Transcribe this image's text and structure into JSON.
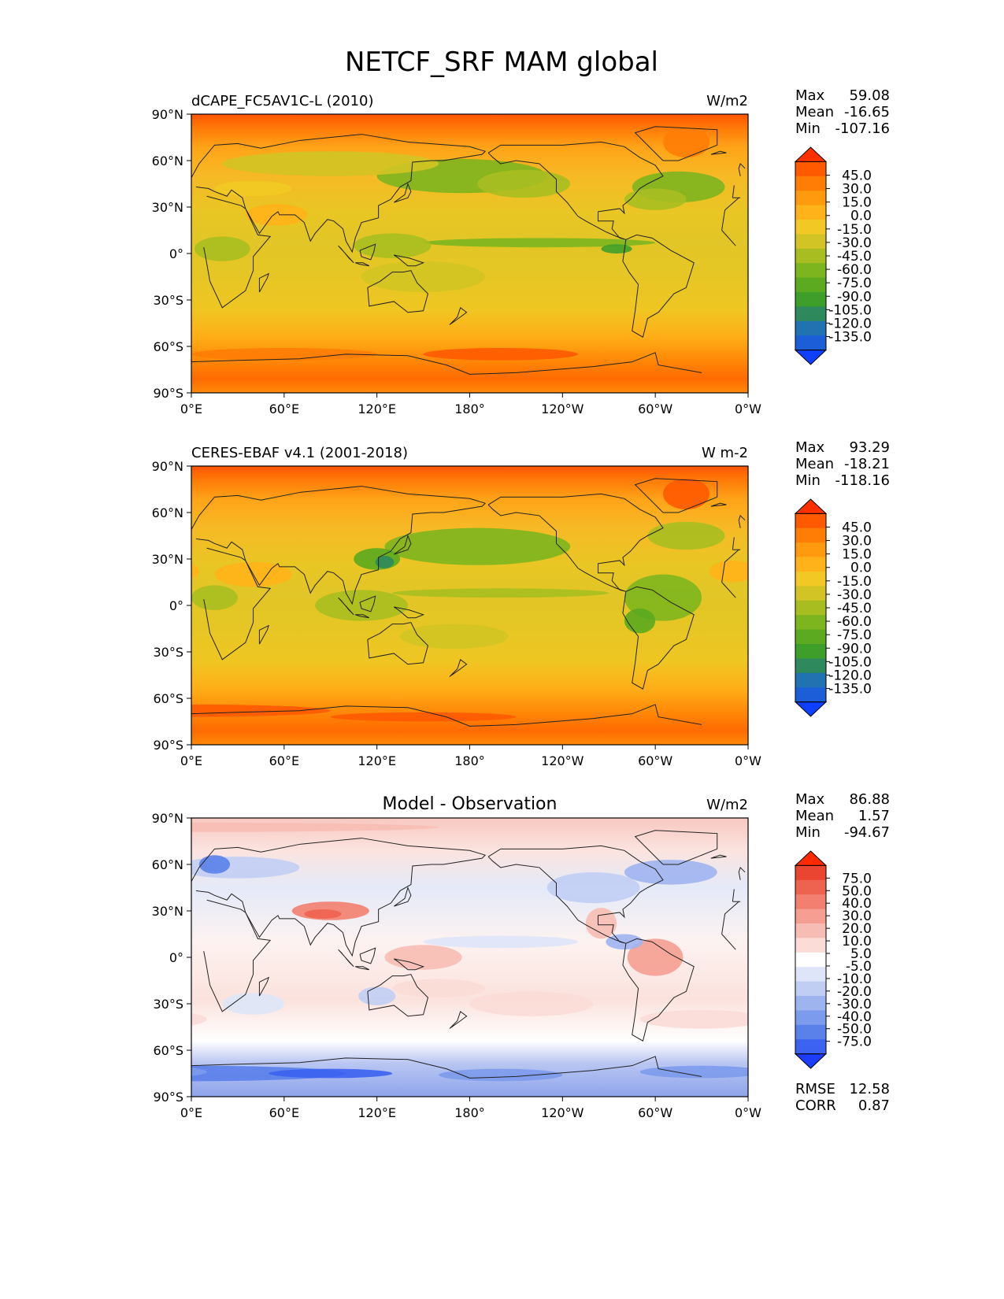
{
  "title": "NETCF_SRF MAM global",
  "x_ticks": [
    "0°E",
    "60°E",
    "120°E",
    "180°",
    "120°W",
    "60°W",
    "0°W"
  ],
  "y_ticks": [
    "90°N",
    "60°N",
    "30°N",
    "0°",
    "30°S",
    "60°S",
    "90°S"
  ],
  "colors": {
    "absolute": [
      "#0F40FF",
      "#1C5ED8",
      "#2072B0",
      "#2E8A5C",
      "#3E9E2A",
      "#5BAA1F",
      "#7DB51E",
      "#A8BE20",
      "#D1C424",
      "#F2C924",
      "#FFB21A",
      "#FF9A0E",
      "#FF7D05",
      "#FF5A00",
      "#FF3000"
    ],
    "difference": [
      "#1C3CFF",
      "#3B62F0",
      "#5A80EA",
      "#7C9BEC",
      "#9EB4EF",
      "#C1CEF4",
      "#DEE5F8",
      "#FFFFFF",
      "#FBDCD7",
      "#F7BDB4",
      "#F59E91",
      "#F27F6F",
      "#EE6250",
      "#EA4530",
      "#FF2A00"
    ]
  },
  "panels": [
    {
      "left_title": "dCAPE_FC5AV1C-L (2010)",
      "center_title": "",
      "units": "W/m2",
      "stats": [
        {
          "label": "Max",
          "value": "59.08"
        },
        {
          "label": "Mean",
          "value": "-16.65"
        },
        {
          "label": "Min",
          "value": "-107.16"
        }
      ],
      "colorbar_labels": [
        "45.0",
        "30.0",
        "15.0",
        "0.0",
        "-15.0",
        "-30.0",
        "-45.0",
        "-60.0",
        "-75.0",
        "-90.0",
        "-105.0",
        "-120.0",
        "-135.0"
      ],
      "palette": "absolute",
      "extra_stats": []
    },
    {
      "left_title": "CERES-EBAF v4.1 (2001-2018)",
      "center_title": "",
      "units": "W m-2",
      "stats": [
        {
          "label": "Max",
          "value": "93.29"
        },
        {
          "label": "Mean",
          "value": "-18.21"
        },
        {
          "label": "Min",
          "value": "-118.16"
        }
      ],
      "colorbar_labels": [
        "45.0",
        "30.0",
        "15.0",
        "0.0",
        "-15.0",
        "-30.0",
        "-45.0",
        "-60.0",
        "-75.0",
        "-90.0",
        "-105.0",
        "-120.0",
        "-135.0"
      ],
      "palette": "absolute",
      "extra_stats": []
    },
    {
      "left_title": "",
      "center_title": "Model - Observation",
      "units": "W/m2",
      "stats": [
        {
          "label": "Max",
          "value": "86.88"
        },
        {
          "label": "Mean",
          "value": "1.57"
        },
        {
          "label": "Min",
          "value": "-94.67"
        }
      ],
      "colorbar_labels": [
        "75.0",
        "50.0",
        "40.0",
        "30.0",
        "20.0",
        "10.0",
        "5.0",
        "-5.0",
        "-10.0",
        "-20.0",
        "-30.0",
        "-40.0",
        "-50.0",
        "-75.0"
      ],
      "palette": "difference",
      "extra_stats": [
        {
          "label": "RMSE",
          "value": "12.58"
        },
        {
          "label": "CORR",
          "value": "0.87"
        }
      ]
    }
  ]
}
